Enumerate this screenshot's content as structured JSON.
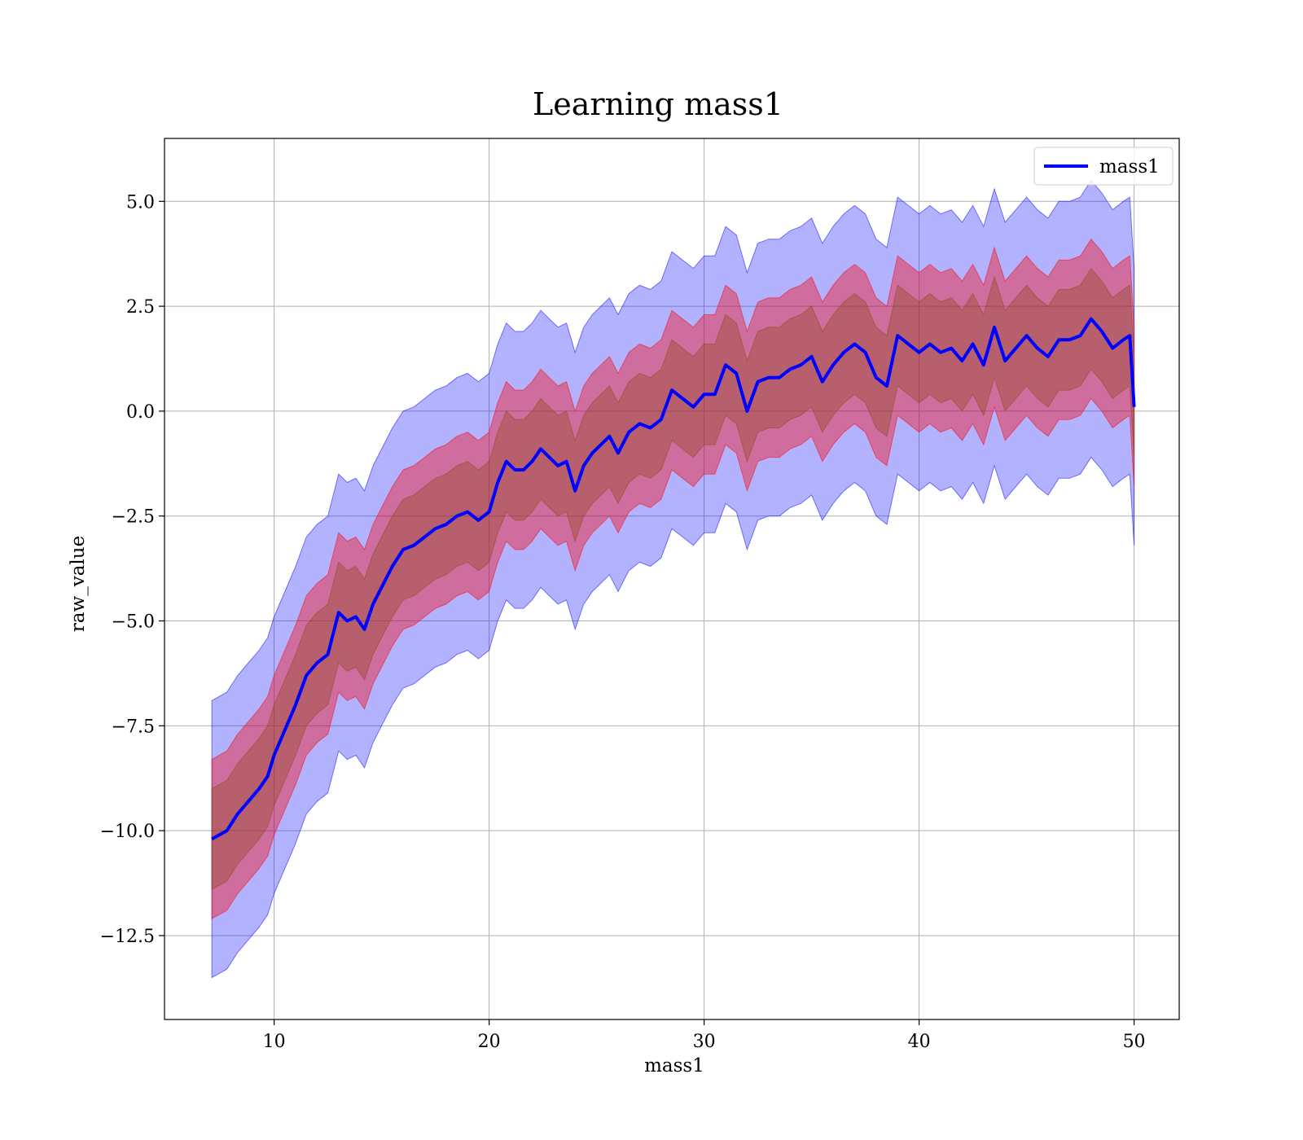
{
  "chart_data": {
    "type": "line",
    "title": "Learning mass1",
    "xlabel": "mass1",
    "ylabel": "raw_value",
    "xlim": [
      4.9,
      52.1
    ],
    "ylim": [
      -14.5,
      6.5
    ],
    "xticks": [
      10,
      20,
      30,
      40,
      50
    ],
    "xtick_labels": [
      "10",
      "20",
      "30",
      "40",
      "50"
    ],
    "yticks": [
      5.0,
      2.5,
      0.0,
      -2.5,
      -5.0,
      -7.5,
      -10.0,
      -12.5
    ],
    "ytick_labels": [
      "5.0",
      "2.5",
      "0.0",
      "−2.5",
      "−5.0",
      "−7.5",
      "−10.0",
      "−12.5"
    ],
    "grid": true,
    "legend": {
      "placement": "top-right",
      "entries": [
        "mass1"
      ]
    },
    "series": [
      {
        "name": "mass1",
        "color": "#0000ff",
        "x": [
          7.1,
          7.8,
          8.3,
          8.8,
          9.3,
          9.7,
          10.0,
          10.5,
          11.0,
          11.5,
          12.0,
          12.5,
          13.0,
          13.4,
          13.8,
          14.2,
          14.6,
          15.0,
          15.5,
          16.0,
          16.5,
          17.0,
          17.5,
          18.0,
          18.5,
          19.0,
          19.5,
          20.0,
          20.4,
          20.8,
          21.2,
          21.6,
          22.0,
          22.4,
          22.8,
          23.2,
          23.6,
          24.0,
          24.4,
          24.8,
          25.2,
          25.6,
          26.0,
          26.5,
          27.0,
          27.5,
          28.0,
          28.5,
          29.0,
          29.5,
          30.0,
          30.5,
          31.0,
          31.5,
          32.0,
          32.5,
          33.0,
          33.5,
          34.0,
          34.5,
          35.0,
          35.5,
          36.0,
          36.5,
          37.0,
          37.5,
          38.0,
          38.5,
          39.0,
          39.5,
          40.0,
          40.5,
          41.0,
          41.5,
          42.0,
          42.5,
          43.0,
          43.5,
          44.0,
          44.5,
          45.0,
          45.5,
          46.0,
          46.5,
          47.0,
          47.5,
          48.0,
          48.5,
          49.0,
          49.5,
          49.8,
          50.0
        ],
        "y": [
          -10.2,
          -10.0,
          -9.6,
          -9.3,
          -9.0,
          -8.7,
          -8.2,
          -7.6,
          -7.0,
          -6.3,
          -6.0,
          -5.8,
          -4.8,
          -5.0,
          -4.9,
          -5.2,
          -4.6,
          -4.2,
          -3.7,
          -3.3,
          -3.2,
          -3.0,
          -2.8,
          -2.7,
          -2.5,
          -2.4,
          -2.6,
          -2.4,
          -1.7,
          -1.2,
          -1.4,
          -1.4,
          -1.2,
          -0.9,
          -1.1,
          -1.3,
          -1.2,
          -1.9,
          -1.3,
          -1.0,
          -0.8,
          -0.6,
          -1.0,
          -0.5,
          -0.3,
          -0.4,
          -0.2,
          0.5,
          0.3,
          0.1,
          0.4,
          0.4,
          1.1,
          0.9,
          0.0,
          0.7,
          0.8,
          0.8,
          1.0,
          1.1,
          1.3,
          0.7,
          1.1,
          1.4,
          1.6,
          1.4,
          0.8,
          0.6,
          1.8,
          1.6,
          1.4,
          1.6,
          1.4,
          1.5,
          1.2,
          1.6,
          1.1,
          2.0,
          1.2,
          1.5,
          1.8,
          1.5,
          1.3,
          1.7,
          1.7,
          1.8,
          2.2,
          1.9,
          1.5,
          1.7,
          1.8,
          0.1
        ],
        "band_inner_halfwidth": [
          1.2,
          1.2,
          1.2,
          1.2,
          1.2,
          1.2,
          1.2,
          1.2,
          1.2,
          1.2,
          1.2,
          1.2,
          1.2,
          1.2,
          1.2,
          1.2,
          1.2,
          1.2,
          1.2,
          1.2,
          1.2,
          1.2,
          1.2,
          1.2,
          1.2,
          1.2,
          1.2,
          1.2,
          1.2,
          1.2,
          1.2,
          1.2,
          1.2,
          1.2,
          1.2,
          1.2,
          1.2,
          1.2,
          1.2,
          1.2,
          1.2,
          1.2,
          1.2,
          1.2,
          1.2,
          1.2,
          1.2,
          1.2,
          1.2,
          1.2,
          1.2,
          1.2,
          1.2,
          1.2,
          1.2,
          1.2,
          1.2,
          1.2,
          1.2,
          1.2,
          1.2,
          1.2,
          1.2,
          1.2,
          1.2,
          1.2,
          1.2,
          1.2,
          1.2,
          1.2,
          1.2,
          1.2,
          1.2,
          1.2,
          1.2,
          1.2,
          1.2,
          1.2,
          1.2,
          1.2,
          1.2,
          1.2,
          1.2,
          1.2,
          1.2,
          1.2,
          1.2,
          1.2,
          1.2,
          1.2,
          1.2,
          1.2
        ],
        "band_middle_halfwidth": [
          1.9,
          1.9,
          1.9,
          1.9,
          1.9,
          1.9,
          1.9,
          1.9,
          1.9,
          1.9,
          1.9,
          1.9,
          1.9,
          1.9,
          1.9,
          1.9,
          1.9,
          1.9,
          1.9,
          1.9,
          1.9,
          1.9,
          1.9,
          1.9,
          1.9,
          1.9,
          1.9,
          1.9,
          1.9,
          1.9,
          1.9,
          1.9,
          1.9,
          1.9,
          1.9,
          1.9,
          1.9,
          1.9,
          1.9,
          1.9,
          1.9,
          1.9,
          1.9,
          1.9,
          1.9,
          1.9,
          1.9,
          1.9,
          1.9,
          1.9,
          1.9,
          1.9,
          1.9,
          1.9,
          1.9,
          1.9,
          1.9,
          1.9,
          1.9,
          1.9,
          1.9,
          1.9,
          1.9,
          1.9,
          1.9,
          1.9,
          1.9,
          1.9,
          1.9,
          1.9,
          1.9,
          1.9,
          1.9,
          1.9,
          1.9,
          1.9,
          1.9,
          1.9,
          1.9,
          1.9,
          1.9,
          1.9,
          1.9,
          1.9,
          1.9,
          1.9,
          1.9,
          1.9,
          1.9,
          1.9,
          1.9,
          1.9
        ],
        "band_outer_halfwidth": [
          3.3,
          3.3,
          3.3,
          3.3,
          3.3,
          3.3,
          3.3,
          3.3,
          3.3,
          3.3,
          3.3,
          3.3,
          3.3,
          3.3,
          3.3,
          3.3,
          3.3,
          3.3,
          3.3,
          3.3,
          3.3,
          3.3,
          3.3,
          3.3,
          3.3,
          3.3,
          3.3,
          3.3,
          3.3,
          3.3,
          3.3,
          3.3,
          3.3,
          3.3,
          3.3,
          3.3,
          3.3,
          3.3,
          3.3,
          3.3,
          3.3,
          3.3,
          3.3,
          3.3,
          3.3,
          3.3,
          3.3,
          3.3,
          3.3,
          3.3,
          3.3,
          3.3,
          3.3,
          3.3,
          3.3,
          3.3,
          3.3,
          3.3,
          3.3,
          3.3,
          3.3,
          3.3,
          3.3,
          3.3,
          3.3,
          3.3,
          3.3,
          3.3,
          3.3,
          3.3,
          3.3,
          3.3,
          3.3,
          3.3,
          3.3,
          3.3,
          3.3,
          3.3,
          3.3,
          3.3,
          3.3,
          3.3,
          3.3,
          3.3,
          3.3,
          3.3,
          3.3,
          3.3,
          3.3,
          3.3,
          3.3,
          3.3
        ]
      }
    ],
    "band_colors": {
      "outer": "#0000ff",
      "middle": "#ff0000",
      "inner": "#8b4513"
    }
  }
}
